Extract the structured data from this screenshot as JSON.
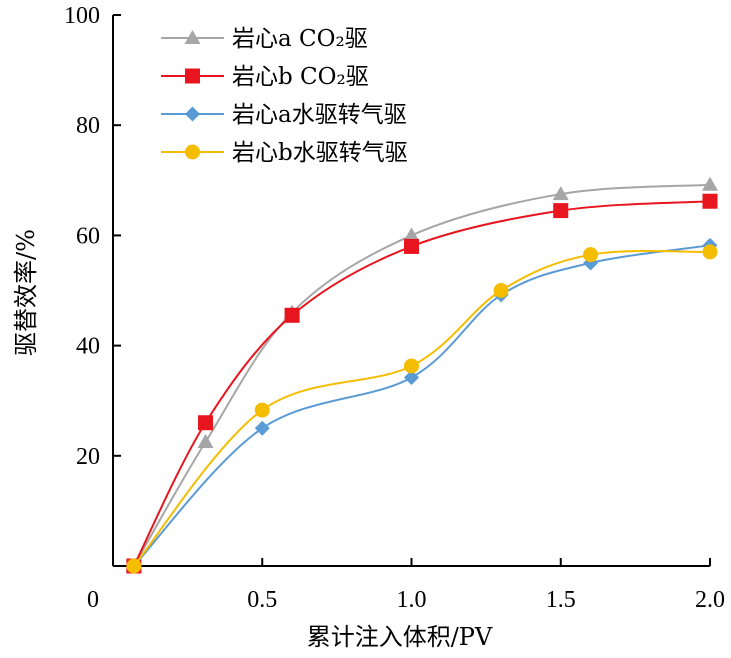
{
  "chart_data": {
    "type": "line",
    "xlabel": "累计注入体积/PV",
    "ylabel": "驱替效率/%",
    "xlim": [
      0,
      2.0
    ],
    "ylim": [
      0,
      100
    ],
    "x_ticks": [
      {
        "value": 0,
        "label": "0"
      },
      {
        "value": 0.5,
        "label": "0.5"
      },
      {
        "value": 1.0,
        "label": "1.0"
      },
      {
        "value": 1.5,
        "label": "1.5"
      },
      {
        "value": 2.0,
        "label": "2.0"
      }
    ],
    "y_ticks": [
      {
        "value": 20,
        "label": "20"
      },
      {
        "value": 40,
        "label": "40"
      },
      {
        "value": 60,
        "label": "60"
      },
      {
        "value": 80,
        "label": "80"
      },
      {
        "value": 100,
        "label": "100"
      }
    ],
    "grid": false,
    "legend_position": "top-left",
    "series": [
      {
        "name": "岩心a CO₂驱",
        "color": "#a6a6a6",
        "marker": "triangle",
        "x": [
          0.07,
          0.31,
          0.6,
          1.0,
          1.5,
          2.0
        ],
        "y": [
          0,
          22.5,
          46,
          60,
          67.5,
          69.2
        ]
      },
      {
        "name": "岩心b CO₂驱",
        "color": "#e8141e",
        "marker": "square",
        "x": [
          0.07,
          0.31,
          0.6,
          1.0,
          1.5,
          2.0
        ],
        "y": [
          0,
          26,
          45.5,
          58,
          64.5,
          66.2
        ]
      },
      {
        "name": "岩心a水驱转气驱",
        "color": "#5b9bd5",
        "marker": "diamond",
        "x": [
          0.07,
          0.5,
          1.0,
          1.3,
          1.6,
          2.0
        ],
        "y": [
          0,
          25,
          34.2,
          49.2,
          55,
          58.2
        ]
      },
      {
        "name": "岩心b水驱转气驱",
        "color": "#f5bd00",
        "marker": "circle",
        "x": [
          0.07,
          0.5,
          1.0,
          1.3,
          1.6,
          2.0
        ],
        "y": [
          0,
          28.3,
          36.3,
          50,
          56.5,
          57
        ]
      }
    ]
  }
}
